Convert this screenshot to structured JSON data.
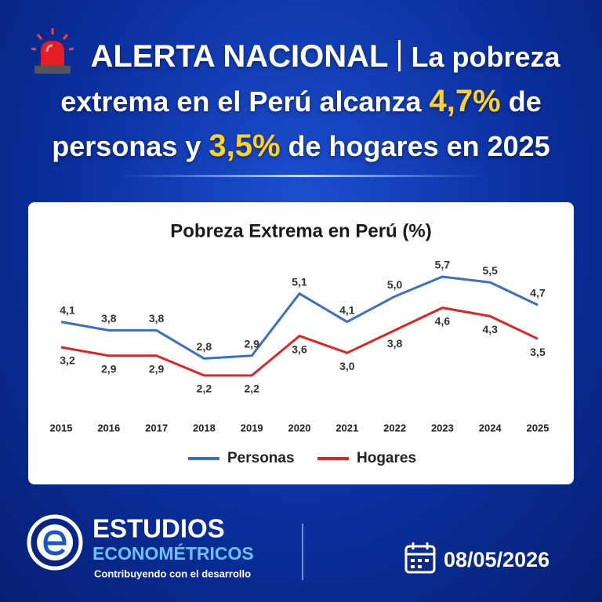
{
  "headline": {
    "alert": "ALERTA NACIONAL",
    "lines": [
      [
        {
          "text": "La pobreza",
          "color": "#ffffff"
        }
      ],
      [
        {
          "text": "extrema en el Perú alcanza",
          "color": "#ffffff"
        },
        {
          "text": "4,7%",
          "color": "#ffd21f"
        },
        {
          "text": "de",
          "color": "#ffffff"
        }
      ],
      [
        {
          "text": "personas y",
          "color": "#ffffff"
        },
        {
          "text": "3,5%",
          "color": "#ffd21f"
        },
        {
          "text": "de hogares en 2025",
          "color": "#ffffff"
        }
      ]
    ]
  },
  "chart_data": {
    "type": "line",
    "title": "Pobreza Extrema en Perú (%)",
    "categories": [
      "2015",
      "2016",
      "2017",
      "2018",
      "2019",
      "2020",
      "2021",
      "2022",
      "2023",
      "2024",
      "2025"
    ],
    "series": [
      {
        "name": "Personas",
        "color": "#3a6fc4",
        "values": [
          4.1,
          3.8,
          3.8,
          2.8,
          2.9,
          5.1,
          4.1,
          5.0,
          5.7,
          5.5,
          4.7
        ],
        "value_labels": [
          "4,1",
          "3,8",
          "3,8",
          "2,8",
          "2,9",
          "5,1",
          "4,1",
          "5,0",
          "5,7",
          "5,5",
          "4,7"
        ]
      },
      {
        "name": "Hogares",
        "color": "#e02424",
        "values": [
          3.2,
          2.9,
          2.9,
          2.2,
          2.2,
          3.6,
          3.0,
          3.8,
          4.6,
          4.3,
          3.5
        ],
        "value_labels": [
          "3,2",
          "2,9",
          "2,9",
          "2,2",
          "2,2",
          "3,6",
          "3,0",
          "3,8",
          "4,6",
          "4,3",
          "3,5"
        ]
      }
    ],
    "grid": false,
    "legend": "bottom"
  },
  "footer": {
    "brand_top": "ESTUDIOS",
    "brand_bottom": "ECONOMÉTRICOS",
    "tagline": "Contribuyendo con el desarrollo",
    "date": "08/05/2026"
  }
}
